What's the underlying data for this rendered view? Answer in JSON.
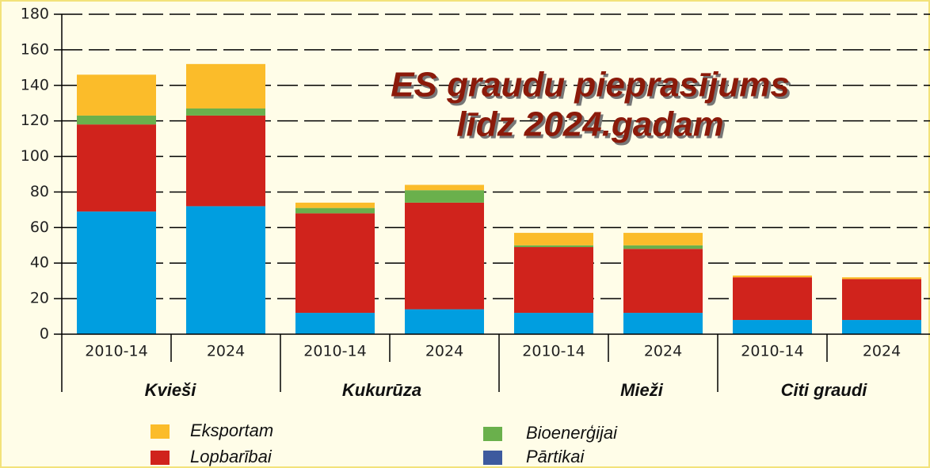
{
  "chart_data": {
    "type": "stacked_bar",
    "title_lines": [
      "ES graudu pieprasījums",
      "līdz 2024.gadam"
    ],
    "categories": [
      "2010-14",
      "2024",
      "2010-14",
      "2024",
      "2010-14",
      "2024",
      "2010-14",
      "2024"
    ],
    "groups": [
      "Kvieši",
      "Kukurūza",
      "Mieži",
      "Citi graudi"
    ],
    "series": [
      {
        "name": "Pārtikai",
        "color": "#009ee0",
        "legend_color": "#3d5a9e",
        "values": [
          69,
          72,
          12,
          14,
          12,
          12,
          8,
          8
        ]
      },
      {
        "name": "Lopbarībai",
        "color": "#d0231c",
        "values": [
          49,
          51,
          56,
          60,
          37,
          36,
          24,
          23
        ]
      },
      {
        "name": "Bioenerģijai",
        "color": "#6ab04c",
        "values": [
          5,
          4,
          3,
          7,
          1,
          2,
          0,
          0
        ]
      },
      {
        "name": "Eksportam",
        "color": "#fbbc2a",
        "values": [
          23,
          25,
          3,
          3,
          7,
          7,
          1,
          1
        ]
      }
    ],
    "ylim": [
      0,
      180
    ],
    "yticks": [
      0,
      20,
      40,
      60,
      80,
      100,
      120,
      140,
      160,
      180
    ],
    "grid": true
  }
}
